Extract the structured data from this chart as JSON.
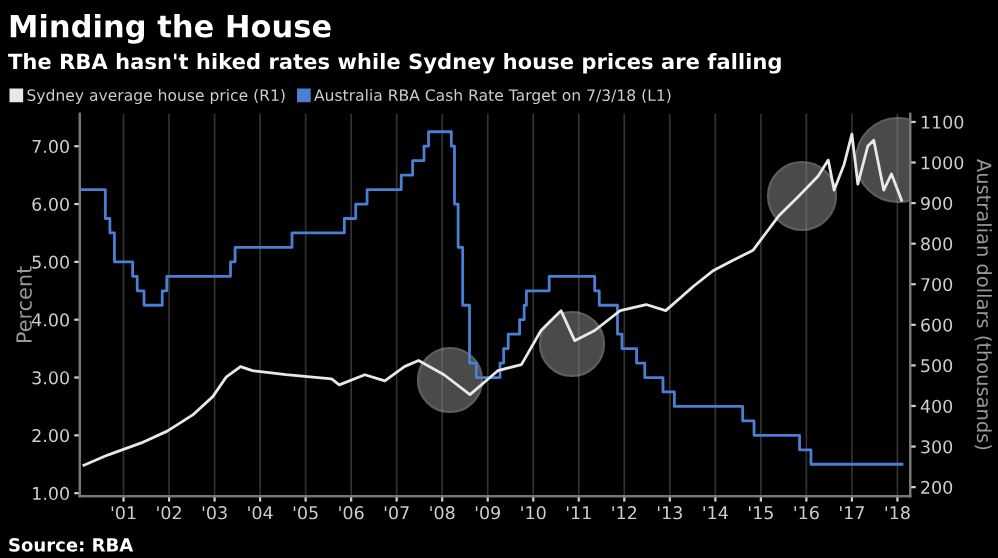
{
  "chart_data": {
    "type": "line",
    "title": "Minding the House",
    "subtitle": "The RBA hasn't hiked rates while Sydney house prices are falling",
    "ylabel": "Percent",
    "y2label": "Australian dollars (thousands)",
    "annotations": [
      "Source: RBA"
    ],
    "series": [
      {
        "name": "Sydney average house price (R1)",
        "color": "#e8e8e8",
        "axis": "y2",
        "x": [
          2000.13,
          2000.65,
          2001.39,
          2001.96,
          2002.52,
          2002.96,
          2003.26,
          2003.57,
          2003.83,
          2004.57,
          2005.57,
          2005.74,
          2006.3,
          2006.74,
          2007.17,
          2007.48,
          2008.04,
          2008.61,
          2009.22,
          2009.74,
          2010.17,
          2010.61,
          2010.91,
          2011.35,
          2011.91,
          2012.48,
          2012.91,
          2013.52,
          2013.96,
          2014.39,
          2014.83,
          2015.39,
          2015.83,
          2016.26,
          2016.48,
          2016.61,
          2016.83,
          2017.0,
          2017.13,
          2017.35,
          2017.48,
          2017.7,
          2017.87,
          2018.09
        ],
        "values": [
          254,
          279,
          309,
          338,
          378,
          423,
          472,
          497,
          487,
          477,
          467,
          452,
          477,
          462,
          497,
          512,
          477,
          428,
          487,
          502,
          586,
          635,
          561,
          586,
          635,
          650,
          635,
          695,
          734,
          759,
          784,
          868,
          917,
          967,
          1006,
          932,
          996,
          1070,
          947,
          1041,
          1055,
          932,
          972,
          907
        ]
      },
      {
        "name": "Australia RBA Cash Rate Target on 7/3/18 (L1)",
        "color": "#4a7fd4",
        "type": "step",
        "x": [
          2000.08,
          2000.6,
          2000.7,
          2000.8,
          2001.2,
          2001.3,
          2001.45,
          2001.85,
          2001.95,
          2003.35,
          2003.45,
          2004.7,
          2005.85,
          2006.1,
          2006.35,
          2007.1,
          2007.35,
          2007.6,
          2007.7,
          2008.2,
          2008.27,
          2008.35,
          2008.45,
          2008.6,
          2008.75,
          2009.27,
          2009.35,
          2009.45,
          2009.7,
          2009.8,
          2009.85,
          2010.35,
          2011.35,
          2011.45,
          2011.85,
          2011.95,
          2012.27,
          2012.45,
          2012.85,
          2013.1,
          2014.6,
          2014.85,
          2015.85,
          2016.1,
          2018.1
        ],
        "values": [
          6.25,
          5.75,
          5.5,
          5.0,
          4.75,
          4.5,
          4.25,
          4.5,
          4.75,
          5.0,
          5.25,
          5.5,
          5.75,
          6.0,
          6.25,
          6.5,
          6.75,
          7.0,
          7.25,
          7.0,
          6.0,
          5.25,
          4.25,
          3.25,
          3.0,
          3.25,
          3.5,
          3.75,
          4.0,
          4.25,
          4.5,
          4.75,
          4.5,
          4.25,
          3.75,
          3.5,
          3.25,
          3.0,
          2.75,
          2.5,
          2.25,
          2.0,
          1.75,
          1.5,
          1.5
        ]
      }
    ],
    "xlim": [
      2000.04,
      2018.28
    ],
    "xticks": [
      {
        "value": 2001,
        "label": "'01"
      },
      {
        "value": 2002,
        "label": "'02"
      },
      {
        "value": 2003,
        "label": "'03"
      },
      {
        "value": 2004,
        "label": "'04"
      },
      {
        "value": 2005,
        "label": "'05"
      },
      {
        "value": 2006,
        "label": "'06"
      },
      {
        "value": 2007,
        "label": "'07"
      },
      {
        "value": 2008,
        "label": "'08"
      },
      {
        "value": 2009,
        "label": "'09"
      },
      {
        "value": 2010,
        "label": "'10"
      },
      {
        "value": 2011,
        "label": "'11"
      },
      {
        "value": 2012,
        "label": "'12"
      },
      {
        "value": 2013,
        "label": "'13"
      },
      {
        "value": 2014,
        "label": "'14"
      },
      {
        "value": 2015,
        "label": "'15"
      },
      {
        "value": 2016,
        "label": "'16"
      },
      {
        "value": 2017,
        "label": "'17"
      },
      {
        "value": 2018,
        "label": "'18"
      }
    ],
    "ylim": [
      0.95,
      7.56
    ],
    "yticks": [
      {
        "value": 1,
        "label": "1.00"
      },
      {
        "value": 2,
        "label": "2.00"
      },
      {
        "value": 3,
        "label": "3.00"
      },
      {
        "value": 4,
        "label": "4.00"
      },
      {
        "value": 5,
        "label": "5.00"
      },
      {
        "value": 6,
        "label": "6.00"
      },
      {
        "value": 7,
        "label": "7.00"
      }
    ],
    "y2lim": [
      178,
      1120
    ],
    "y2ticks": [
      200,
      300,
      400,
      500,
      600,
      700,
      800,
      900,
      1000,
      1100
    ],
    "grid": "x",
    "legend": "top left",
    "line_style": "solid",
    "marker": "none"
  }
}
